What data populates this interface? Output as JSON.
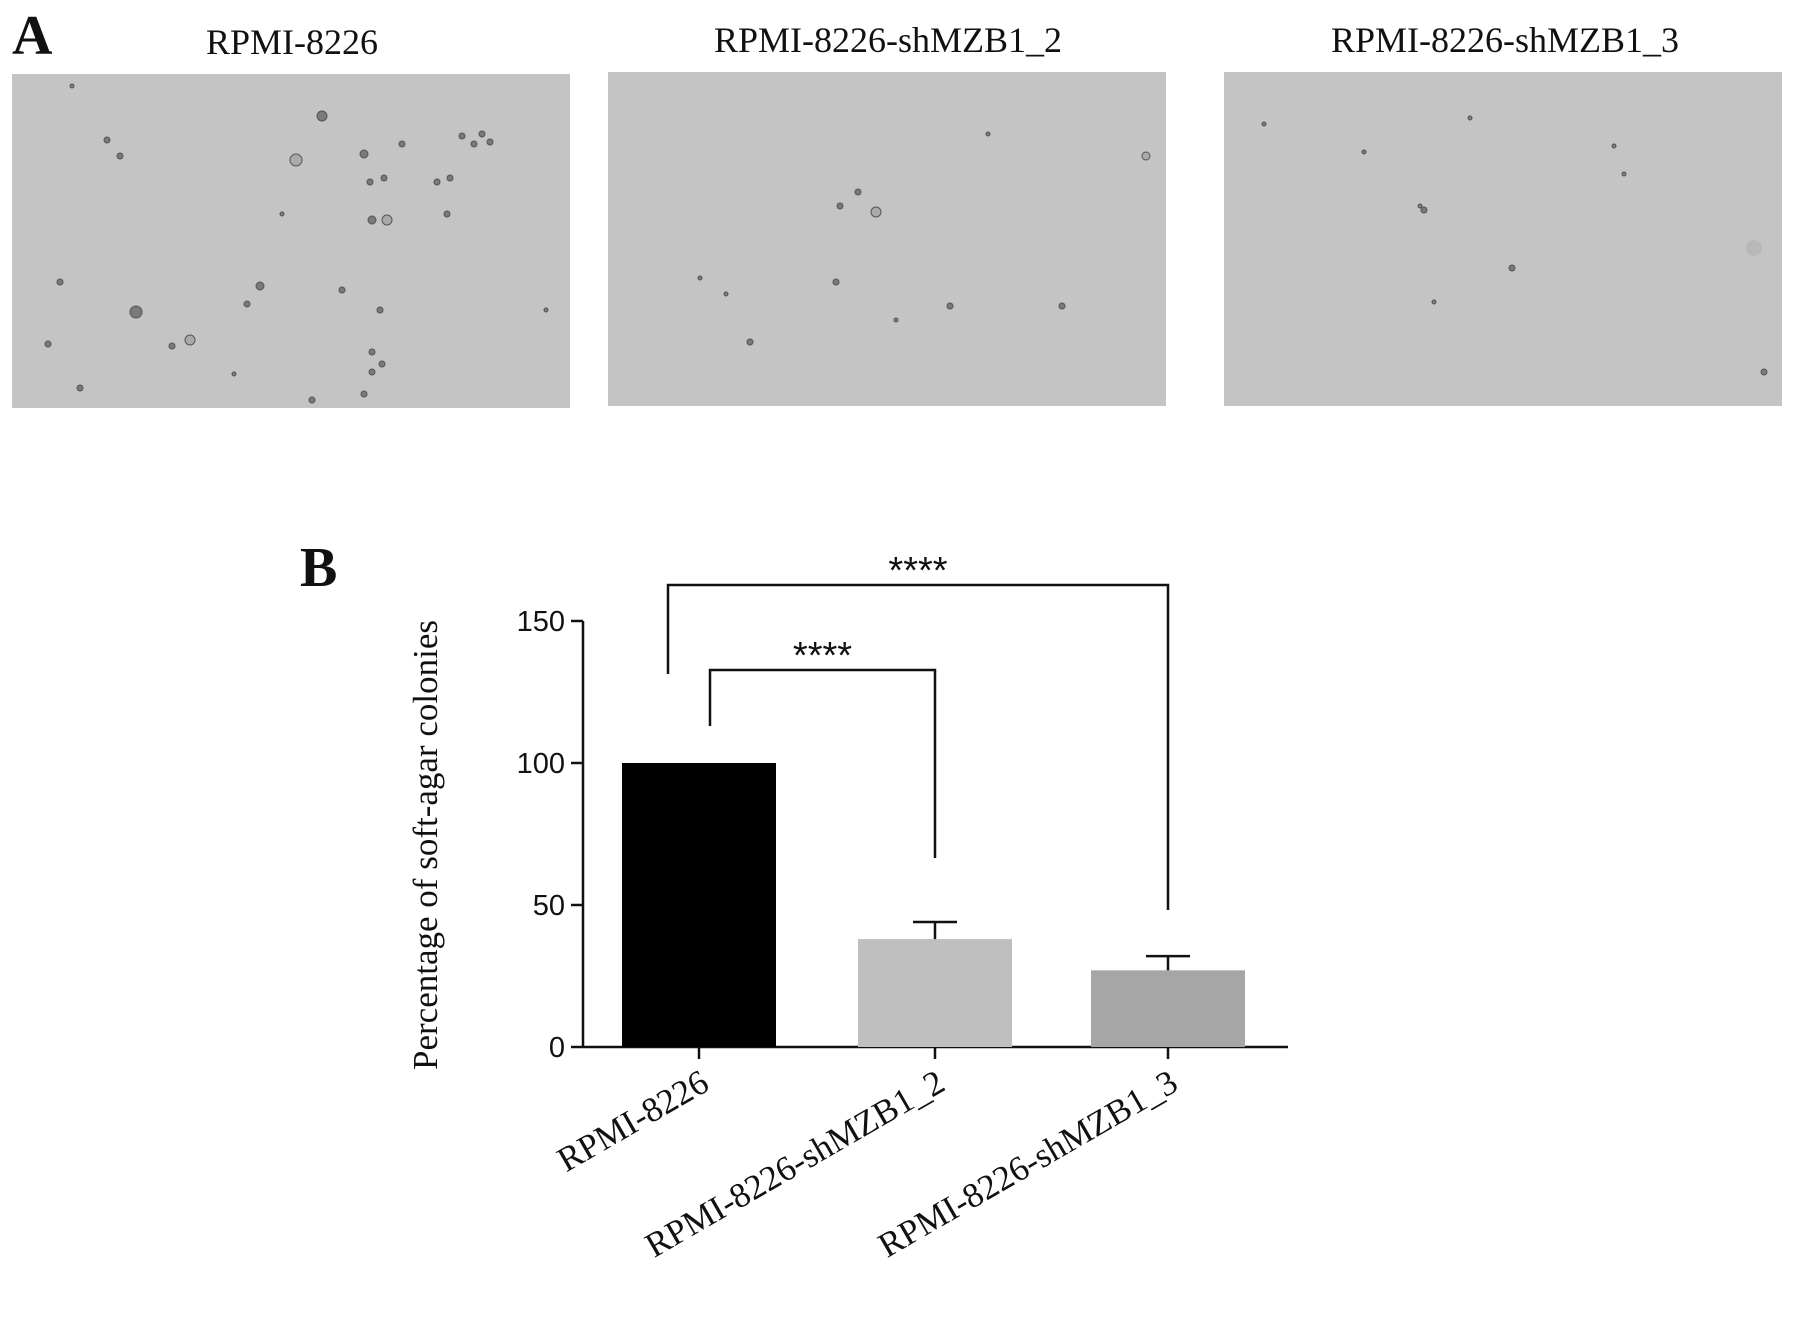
{
  "panel_a": {
    "letter": "A",
    "images": [
      {
        "title": "RPMI-8226"
      },
      {
        "title": "RPMI-8226-shMZB1_2"
      },
      {
        "title": "RPMI-8226-shMZB1_3"
      }
    ]
  },
  "panel_b": {
    "letter": "B"
  },
  "chart_data": {
    "type": "bar",
    "title": "",
    "xlabel": "",
    "ylabel": "Percentage of soft-agar colonies",
    "ylim": [
      0,
      150
    ],
    "yticks": [
      0,
      50,
      100,
      150
    ],
    "categories": [
      "RPMI-8226",
      "RPMI-8226-shMZB1_2",
      "RPMI-8226-shMZB1_3"
    ],
    "values": [
      100,
      38,
      27
    ],
    "errors": [
      0,
      6,
      5
    ],
    "bar_colors": [
      "#000000",
      "#bfbfbf",
      "#a6a6a6"
    ],
    "significance": [
      {
        "from": 0,
        "to": 1,
        "label": "****"
      },
      {
        "from": 0,
        "to": 2,
        "label": "****"
      }
    ],
    "grid": false,
    "legend": "none"
  }
}
